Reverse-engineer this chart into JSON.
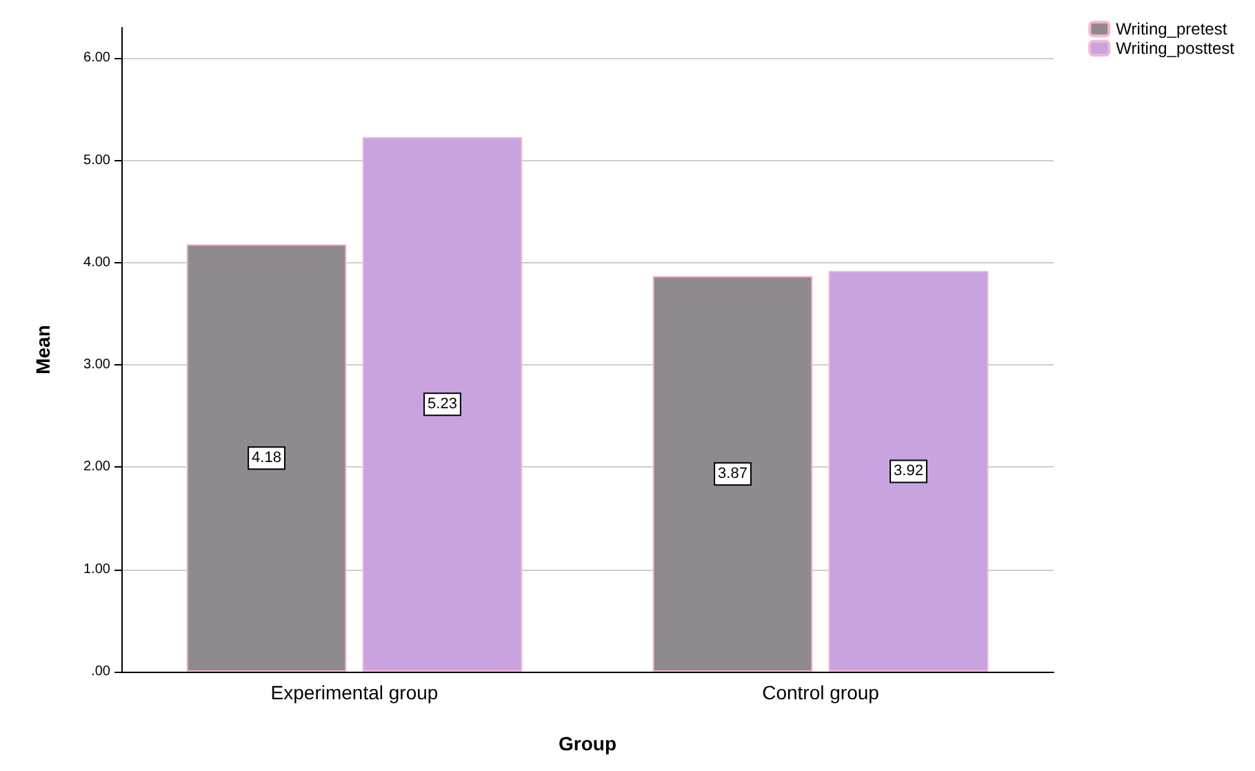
{
  "chart_data": {
    "type": "bar",
    "xlabel": "Group",
    "ylabel": "Mean",
    "categories": [
      "Experimental group",
      "Control group"
    ],
    "series": [
      {
        "name": "Writing_pretest",
        "color": "#8f8a8f",
        "values": [
          4.18,
          3.87
        ]
      },
      {
        "name": "Writing_posttest",
        "color": "#c9a3e0",
        "values": [
          5.23,
          3.92
        ]
      }
    ],
    "ylim": [
      0,
      6.3
    ],
    "yticks": [
      {
        "value": 0,
        "label": ".00"
      },
      {
        "value": 1,
        "label": "1.00"
      },
      {
        "value": 2,
        "label": "2.00"
      },
      {
        "value": 3,
        "label": "3.00"
      },
      {
        "value": 4,
        "label": "4.00"
      },
      {
        "value": 5,
        "label": "5.00"
      },
      {
        "value": 6,
        "label": "6.00"
      }
    ],
    "grid": "y",
    "legend": "top right",
    "data_labels": true
  }
}
